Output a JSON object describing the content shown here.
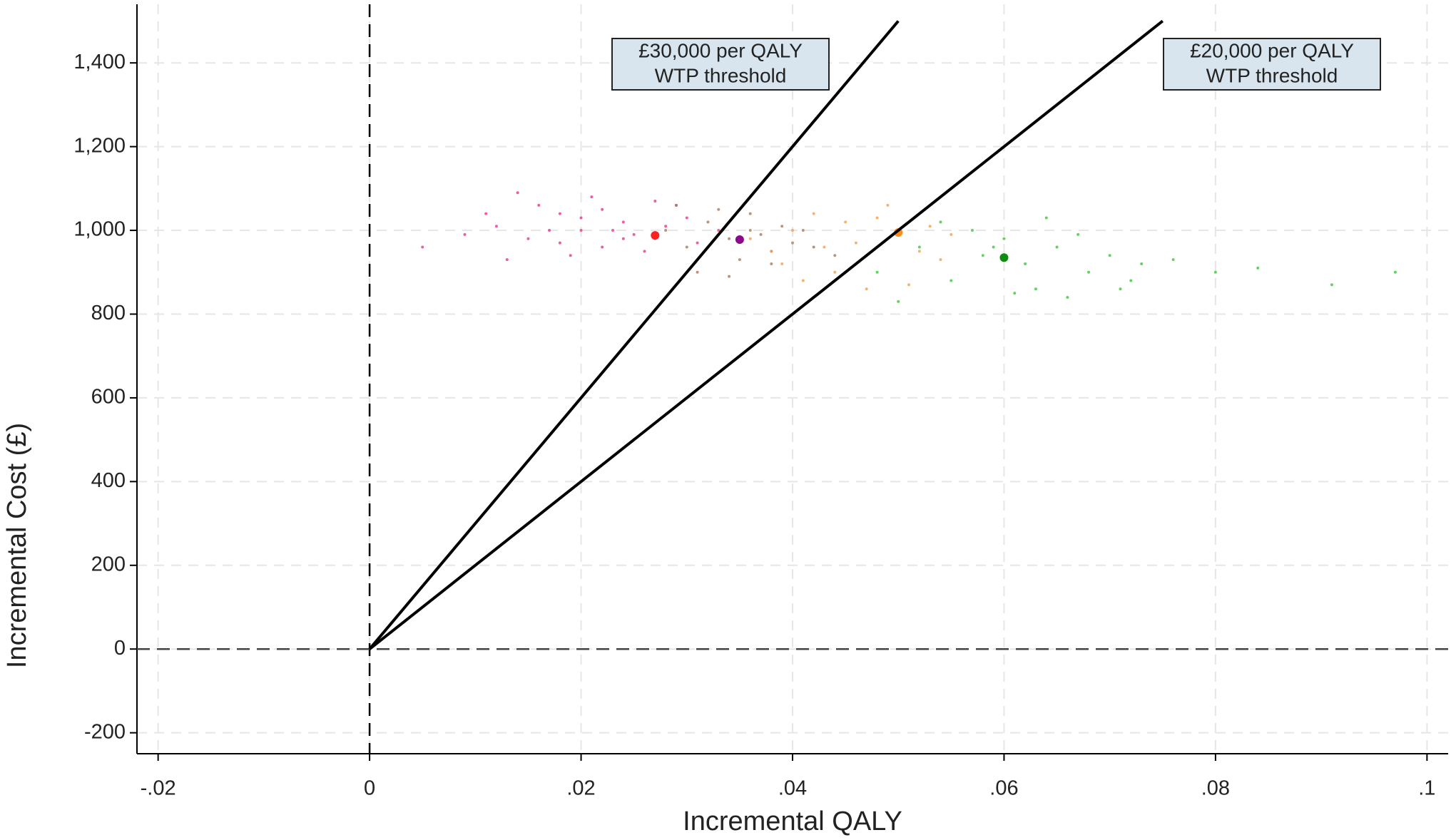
{
  "chart_data": {
    "type": "scatter",
    "x_label": "Incremental QALY",
    "y_label": "Incremental Cost (£)",
    "xlim": [
      -0.022,
      0.102
    ],
    "ylim": [
      -250,
      1540
    ],
    "xticks": [
      {
        "value": -0.02,
        "label": "-.02"
      },
      0,
      {
        "value": 0.02,
        "label": ".02"
      },
      {
        "value": 0.04,
        "label": ".04"
      },
      {
        "value": 0.06,
        "label": ".06"
      },
      {
        "value": 0.08,
        "label": ".08"
      },
      {
        "value": 0.1,
        "label": ".1"
      }
    ],
    "yticks": [
      -200,
      0,
      200,
      400,
      600,
      800,
      {
        "value": 1000,
        "label": "1,000"
      },
      {
        "value": 1200,
        "label": "1,200"
      },
      {
        "value": 1400,
        "label": "1,400"
      }
    ],
    "grid": true,
    "reference_lines": {
      "x": 0,
      "y": 0
    },
    "series": [
      {
        "color": "#e8368f",
        "x": [
          0.012,
          0.015,
          0.018,
          0.02,
          0.022,
          0.024,
          0.016,
          0.021,
          0.025,
          0.028,
          0.019,
          0.023,
          0.026,
          0.03,
          0.009,
          0.013,
          0.017,
          0.027,
          0.031,
          0.02,
          0.024,
          0.022,
          0.018,
          0.033,
          0.005,
          0.011,
          0.014,
          0.029
        ],
        "values": [
          1010,
          980,
          1040,
          1000,
          960,
          1020,
          1060,
          1080,
          990,
          1010,
          940,
          1000,
          950,
          1030,
          990,
          930,
          1000,
          1070,
          970,
          1030,
          980,
          1050,
          970,
          1000,
          960,
          1040,
          1090,
          1060
        ]
      },
      {
        "color": "#a97a5c",
        "x": [
          0.028,
          0.03,
          0.032,
          0.034,
          0.036,
          0.038,
          0.04,
          0.033,
          0.035,
          0.037,
          0.031,
          0.039,
          0.042,
          0.029,
          0.036,
          0.034,
          0.041,
          0.044,
          0.027,
          0.038
        ],
        "values": [
          1000,
          960,
          1020,
          980,
          1000,
          950,
          970,
          1050,
          930,
          990,
          900,
          1010,
          960,
          1060,
          1040,
          890,
          1000,
          940,
          980,
          920
        ]
      },
      {
        "color": "#f0a050",
        "x": [
          0.036,
          0.04,
          0.043,
          0.045,
          0.047,
          0.05,
          0.052,
          0.044,
          0.048,
          0.046,
          0.041,
          0.049,
          0.054,
          0.038,
          0.051,
          0.042,
          0.055,
          0.047,
          0.053,
          0.039
        ],
        "values": [
          980,
          1000,
          960,
          1020,
          940,
          990,
          950,
          900,
          1030,
          970,
          880,
          1060,
          930,
          950,
          870,
          1040,
          990,
          860,
          1010,
          920
        ]
      },
      {
        "color": "#3ec43e",
        "x": [
          0.048,
          0.052,
          0.055,
          0.058,
          0.06,
          0.062,
          0.065,
          0.068,
          0.07,
          0.073,
          0.057,
          0.063,
          0.067,
          0.061,
          0.054,
          0.072,
          0.076,
          0.08,
          0.059,
          0.066,
          0.084,
          0.091,
          0.097,
          0.05,
          0.064,
          0.071
        ],
        "values": [
          900,
          960,
          880,
          940,
          980,
          920,
          960,
          900,
          940,
          920,
          1000,
          860,
          990,
          850,
          1020,
          880,
          930,
          900,
          960,
          840,
          910,
          870,
          900,
          830,
          1030,
          860
        ]
      },
      {
        "color": "#ff2020",
        "x": [
          0.027
        ],
        "values": [
          988
        ],
        "size": 12
      },
      {
        "color": "#8b0a8b",
        "x": [
          0.035
        ],
        "values": [
          978
        ],
        "size": 12
      },
      {
        "color": "#ff8c1a",
        "x": [
          0.05
        ],
        "values": [
          995
        ],
        "size": 12
      },
      {
        "color": "#108a10",
        "x": [
          0.06
        ],
        "values": [
          935
        ],
        "size": 12
      }
    ],
    "lines": [
      {
        "color": "#000000",
        "x": [
          0,
          0.05
        ],
        "values": [
          0,
          1500
        ]
      },
      {
        "color": "#000000",
        "x": [
          0,
          0.075
        ],
        "values": [
          0,
          1500
        ]
      }
    ],
    "annotations": [
      {
        "lines": [
          "£30,000 per QALY",
          "WTP threshold"
        ]
      },
      {
        "lines": [
          "£20,000 per QALY",
          "WTP threshold"
        ]
      }
    ]
  }
}
